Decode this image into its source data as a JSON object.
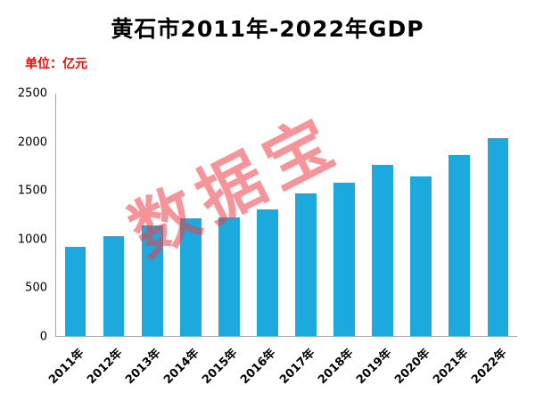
{
  "title": "黄石市2011年-2022年GDP",
  "unit_label": "单位：亿元",
  "watermark": "数据宝",
  "colors": {
    "bar": "#1caade",
    "unit_text": "#ff0000",
    "watermark": "#ed3c46",
    "axis": "#a6a6a6"
  },
  "chart_data": {
    "type": "bar",
    "title": "黄石市2011年-2022年GDP",
    "ylabel": "单位：亿元",
    "categories": [
      "2011年",
      "2012年",
      "2013年",
      "2014年",
      "2015年",
      "2016年",
      "2017年",
      "2018年",
      "2019年",
      "2020年",
      "2021年",
      "2022年"
    ],
    "values": [
      920,
      1030,
      1140,
      1210,
      1220,
      1305,
      1470,
      1585,
      1767,
      1641,
      1868,
      2041
    ],
    "ylim": [
      0,
      2500
    ],
    "yticks": [
      0,
      500,
      1000,
      1500,
      2000,
      2500
    ],
    "grid": false,
    "legend": "none"
  }
}
